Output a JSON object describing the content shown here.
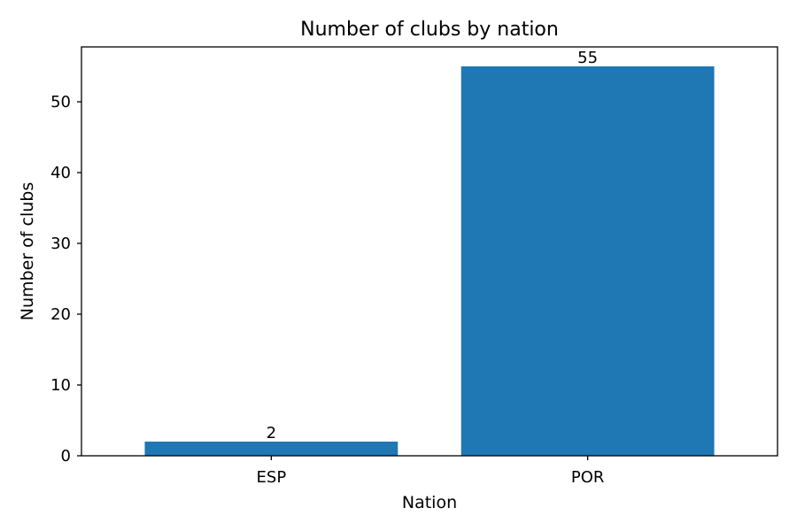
{
  "chart_data": {
    "type": "bar",
    "title": "Number of clubs by nation",
    "xlabel": "Nation",
    "ylabel": "Number of clubs",
    "categories": [
      "ESP",
      "POR"
    ],
    "values": [
      2,
      55
    ],
    "value_labels": [
      "2",
      "55"
    ],
    "ylim": [
      0,
      57.75
    ],
    "yticks": [
      0,
      10,
      20,
      30,
      40,
      50
    ],
    "ytick_labels": [
      "0",
      "10",
      "20",
      "30",
      "40",
      "50"
    ],
    "bar_color": "#1f77b4",
    "grid": false,
    "legend": "none"
  }
}
